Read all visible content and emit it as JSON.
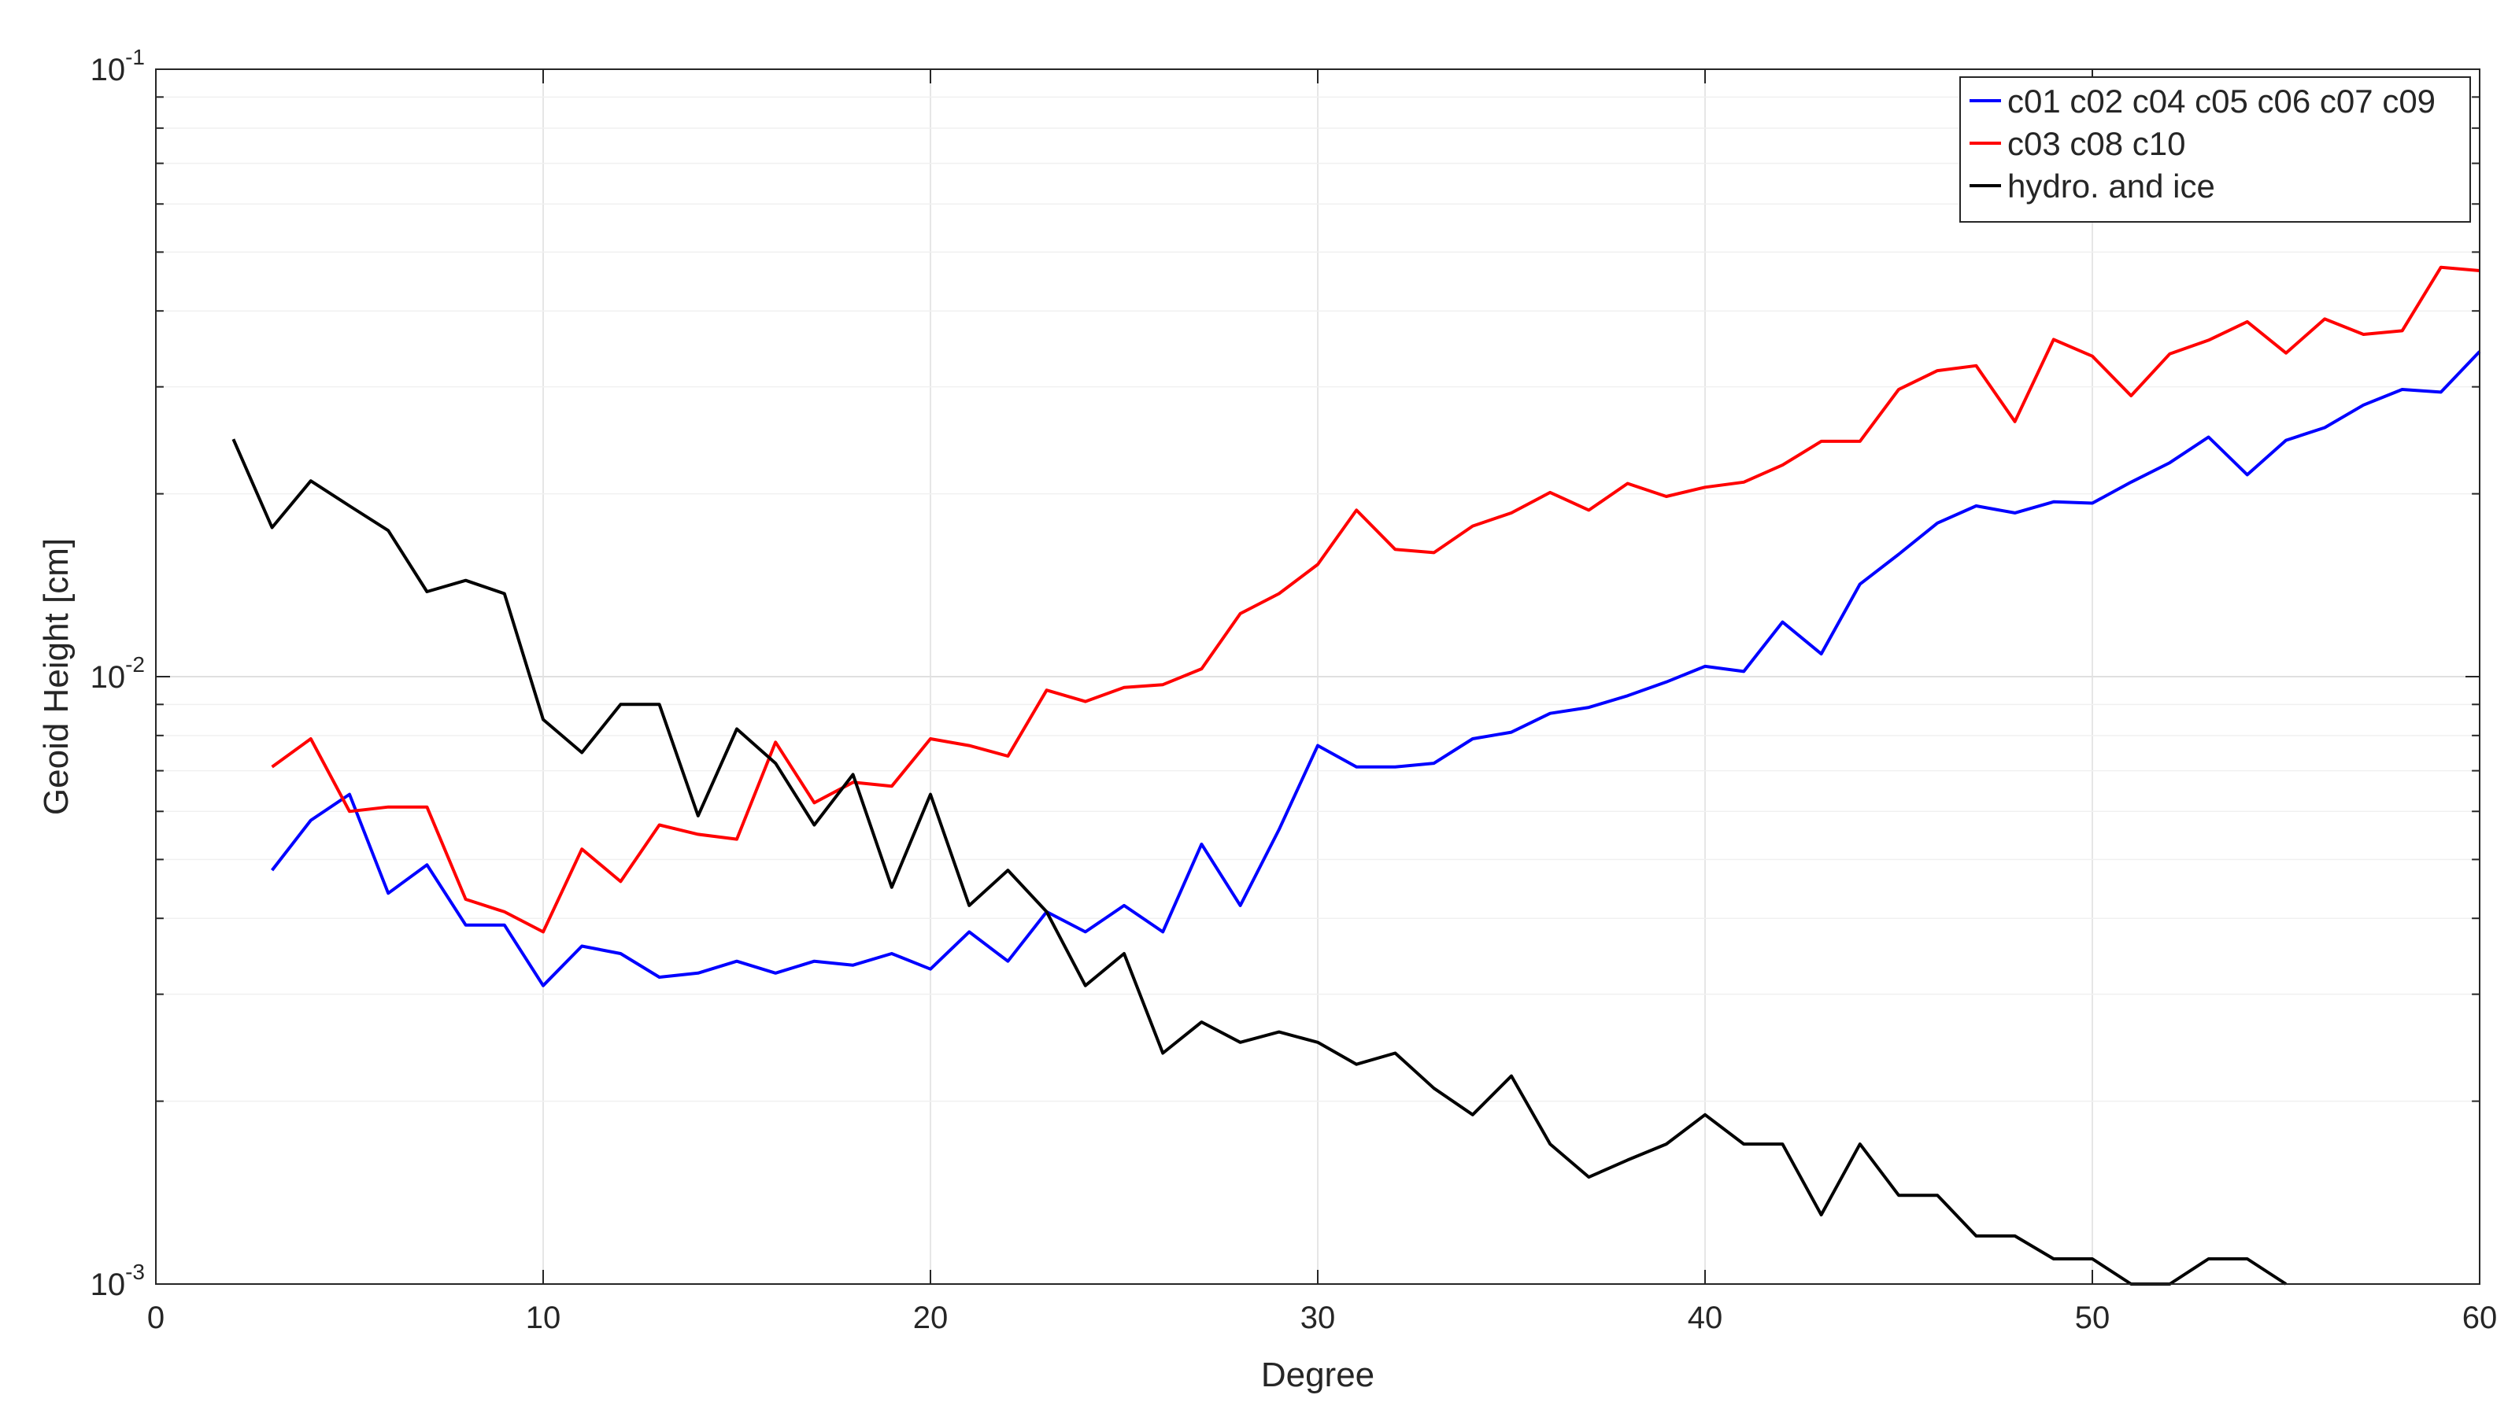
{
  "chart_data": {
    "type": "line",
    "title": "",
    "xlabel": "Degree",
    "ylabel": "Geoid Height [cm]",
    "xlim": [
      0,
      60
    ],
    "ylim": [
      0.001,
      0.1
    ],
    "yscale": "log",
    "grid": true,
    "legend_position": "top-right",
    "x_ticks": [
      0,
      10,
      20,
      30,
      40,
      50,
      60
    ],
    "y_ticks": [
      0.001,
      0.01,
      0.1
    ],
    "x_tick_labels": [
      "0",
      "10",
      "20",
      "30",
      "40",
      "50",
      "60"
    ],
    "y_tick_labels": [
      {
        "base": "10",
        "exp": "-3"
      },
      {
        "base": "10",
        "exp": "-2"
      },
      {
        "base": "10",
        "exp": "-1"
      }
    ],
    "series": [
      {
        "name": "c01 c02 c04 c05 c06 c07 c09",
        "color": "#0000ff",
        "x": [
          3,
          4,
          5,
          6,
          7,
          8,
          9,
          10,
          11,
          12,
          13,
          14,
          15,
          16,
          17,
          18,
          19,
          20,
          21,
          22,
          23,
          24,
          25,
          26,
          27,
          28,
          29,
          30,
          31,
          32,
          33,
          34,
          35,
          36,
          37,
          38,
          39,
          40,
          41,
          42,
          43,
          44,
          45,
          46,
          47,
          48,
          49,
          50,
          51,
          52,
          53,
          54,
          55,
          56,
          57,
          58,
          59,
          60
        ],
        "values": [
          0.0048,
          0.0058,
          0.0064,
          0.0044,
          0.0049,
          0.0039,
          0.0039,
          0.0031,
          0.0036,
          0.0035,
          0.0032,
          0.00325,
          0.0034,
          0.00325,
          0.0034,
          0.00335,
          0.0035,
          0.0033,
          0.0038,
          0.0034,
          0.0041,
          0.0038,
          0.0042,
          0.0038,
          0.0053,
          0.0042,
          0.0056,
          0.0077,
          0.0071,
          0.0071,
          0.0072,
          0.0079,
          0.0081,
          0.0087,
          0.0089,
          0.0093,
          0.0098,
          0.0104,
          0.0102,
          0.0123,
          0.0109,
          0.0142,
          0.0159,
          0.0179,
          0.0191,
          0.0186,
          0.0194,
          0.0193,
          0.0209,
          0.0225,
          0.0248,
          0.0215,
          0.0245,
          0.0257,
          0.028,
          0.0297,
          0.0294,
          0.0343
        ]
      },
      {
        "name": "c03 c08 c10",
        "color": "#ff0000",
        "x": [
          3,
          4,
          5,
          6,
          7,
          8,
          9,
          10,
          11,
          12,
          13,
          14,
          15,
          16,
          17,
          18,
          19,
          20,
          21,
          22,
          23,
          24,
          25,
          26,
          27,
          28,
          29,
          30,
          31,
          32,
          33,
          34,
          35,
          36,
          37,
          38,
          39,
          40,
          41,
          42,
          43,
          44,
          45,
          46,
          47,
          48,
          49,
          50,
          51,
          52,
          53,
          54,
          55,
          56,
          57,
          58,
          59,
          60
        ],
        "values": [
          0.0071,
          0.0079,
          0.006,
          0.0061,
          0.0061,
          0.0043,
          0.0041,
          0.0038,
          0.0052,
          0.0046,
          0.0057,
          0.0055,
          0.0054,
          0.0078,
          0.0062,
          0.0067,
          0.0066,
          0.0079,
          0.0077,
          0.0074,
          0.0095,
          0.0091,
          0.0096,
          0.0097,
          0.0103,
          0.0127,
          0.0137,
          0.0153,
          0.0188,
          0.0162,
          0.016,
          0.0177,
          0.0186,
          0.0201,
          0.0188,
          0.0208,
          0.0198,
          0.0205,
          0.0209,
          0.0223,
          0.0244,
          0.0244,
          0.0297,
          0.0319,
          0.0325,
          0.0263,
          0.0359,
          0.0337,
          0.029,
          0.034,
          0.0358,
          0.0384,
          0.0341,
          0.0388,
          0.0366,
          0.0371,
          0.0472,
          0.0466
        ]
      },
      {
        "name": "hydro. and ice",
        "color": "#000000",
        "x": [
          2,
          3,
          4,
          5,
          6,
          7,
          8,
          9,
          10,
          11,
          12,
          13,
          14,
          15,
          16,
          17,
          18,
          19,
          20,
          21,
          22,
          23,
          24,
          25,
          26,
          27,
          28,
          29,
          30,
          31,
          32,
          33,
          34,
          35,
          36,
          37,
          38,
          39,
          40,
          41,
          42,
          43,
          44,
          45,
          46,
          47,
          48,
          49,
          50,
          51,
          52,
          53,
          54,
          55
        ],
        "values": [
          0.0246,
          0.0176,
          0.021,
          0.0191,
          0.0174,
          0.0138,
          0.0144,
          0.0137,
          0.0085,
          0.0075,
          0.009,
          0.009,
          0.0059,
          0.0082,
          0.0072,
          0.0057,
          0.0069,
          0.0045,
          0.0064,
          0.0042,
          0.0048,
          0.0041,
          0.0031,
          0.0035,
          0.0024,
          0.0027,
          0.0025,
          0.0026,
          0.0025,
          0.0023,
          0.0024,
          0.0021,
          0.0019,
          0.0022,
          0.0017,
          0.0015,
          0.0016,
          0.0017,
          0.0019,
          0.0017,
          0.0017,
          0.0013,
          0.0017,
          0.0014,
          0.0014,
          0.0012,
          0.0012,
          0.0011,
          0.0011,
          0.001,
          0.001,
          0.0011,
          0.0011,
          0.001
        ]
      }
    ]
  }
}
